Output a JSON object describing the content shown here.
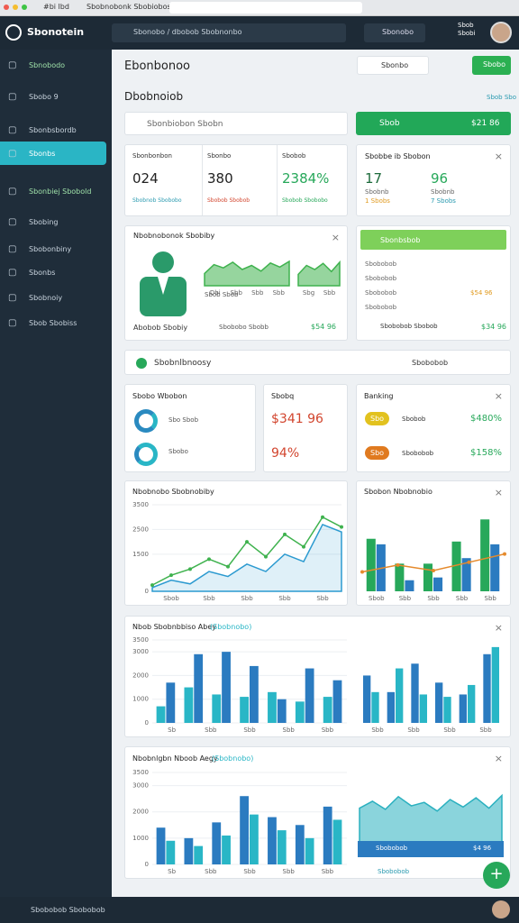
{
  "browser": {
    "tabs": [
      "#bi lbd",
      "Sbobnobonk Sbobiobosk"
    ]
  },
  "header": {
    "brand": "Sbonotein",
    "search": "Sbonobo / dbobob Sbobnonbo",
    "button": "Sbonobo",
    "user": "Sbob Sbobi"
  },
  "sidebar": {
    "active": 3,
    "items": [
      "Sbnobodo",
      "Sbobo 9",
      "Sbonbsbordb",
      "Sbonbs",
      "Sbonbiej Sbobold",
      "Sbobing",
      "Sbobonbiny",
      "Sbonbs",
      "Sbobnoiy",
      "Sbob Sbobiss"
    ]
  },
  "main": {
    "title": "Ebonbonoo",
    "select": "Sbonbo",
    "action": "Sbobo",
    "section": "Dbobnoiob",
    "section_link": "Sbob Sbo",
    "search": "Sbonbiobon Sbobn",
    "green_bar": {
      "label": "Sbob",
      "value": "$21 86"
    }
  },
  "stats": [
    {
      "label": "Sbonbonbon",
      "value": "024",
      "note": "Sbobnob Sbobobo"
    },
    {
      "label": "Sbonbo",
      "value": "380",
      "note": "Sbobob Sbobob"
    },
    {
      "label": "Sbobob",
      "value": "2384%",
      "note": "Sbobob Sbobobo"
    }
  ],
  "mini": {
    "title": "Sbobbe ib Sbobon",
    "items": [
      {
        "value": "17",
        "note": "Sbobnb",
        "sub": "1 Sbobs"
      },
      {
        "value": "96",
        "note": "Sbobnb",
        "sub": "7 Sbobs"
      }
    ]
  },
  "profile": {
    "title": "Nbobnobonok Sbobiby",
    "name": "Abobob Sbobiy",
    "caption": "Sbob Sbob",
    "note": "Sbobobo Sbobb",
    "value": "$54 96",
    "chart1": {
      "type": "area",
      "ylim": [
        0,
        80
      ],
      "xlabels": [
        "Dbi",
        "Sbb",
        "Sbb",
        "Sbb"
      ],
      "series": [
        {
          "color": "#3fb24e",
          "values": [
            30,
            52,
            44,
            58,
            40,
            50,
            36,
            56,
            46,
            60
          ]
        }
      ]
    },
    "chart2": {
      "type": "area",
      "ylim": [
        0,
        80
      ],
      "xlabels": [
        "Sbg",
        "Sbb"
      ],
      "series": [
        {
          "color": "#3fb24e",
          "values": [
            28,
            50,
            40,
            55,
            35,
            58
          ]
        }
      ]
    }
  },
  "side_card": {
    "header": "Sbonbsbob",
    "rows": [
      "Sbobobob",
      "Sbobobob",
      "Sbobobob",
      "Sbobobob"
    ],
    "row_value": "$54 96",
    "footer": "Sbobobob Sbobob",
    "footer_value": "$34 96"
  },
  "section_bar": {
    "title": "Sbobnlbnoosy",
    "button": "Sbobobob"
  },
  "donut_card": {
    "title": "Sbobo Wbobon",
    "rows": [
      {
        "label": "Sbo Sbob"
      },
      {
        "label": "Sbobo"
      }
    ]
  },
  "amount_card": {
    "title": "Sbobq",
    "value": "$341 96",
    "percent": "94%"
  },
  "banking": {
    "title": "Banking",
    "rows": [
      {
        "badge": "Sbo",
        "label": "Sbobob",
        "value": "$480%"
      },
      {
        "badge": "Sbo",
        "label": "Sbobobob",
        "value": "$158%"
      }
    ]
  },
  "line_card": {
    "title": "Nbobnobo Sbobnobiby",
    "chart": {
      "type": "line",
      "ylim": [
        0,
        3500
      ],
      "yticks": [
        0,
        1500,
        2500,
        3500
      ],
      "xlabels": [
        "Sbob",
        "Sbb",
        "Sbb",
        "Sbb",
        "Sbb"
      ],
      "series": [
        {
          "color": "#2b9ad0",
          "type": "area",
          "values": [
            150,
            450,
            300,
            800,
            600,
            1100,
            800,
            1500,
            1200,
            2700,
            2400
          ]
        },
        {
          "color": "#3fb24e",
          "values": [
            250,
            650,
            900,
            1300,
            1000,
            2000,
            1400,
            2300,
            1800,
            3000,
            2600
          ]
        }
      ]
    }
  },
  "bar_card": {
    "title": "Sbobon Nbobnobio",
    "chart": {
      "type": "bar",
      "ylim": [
        0,
        3000
      ],
      "xlabels": [
        "Sbob",
        "Sbb",
        "Sbb",
        "Sbb",
        "Sbb"
      ],
      "series": [
        {
          "color": "#27a85a",
          "values": [
            1900,
            1000,
            1000,
            1800,
            2600
          ]
        },
        {
          "color": "#2b7bc0",
          "values": [
            1700,
            400,
            500,
            1200,
            1700
          ]
        },
        {
          "color": "#e58a2c",
          "type": "line",
          "values": [
            700,
            950,
            750,
            1050,
            1350
          ]
        }
      ]
    }
  },
  "wide_card": {
    "title": "Nbob Sbobnbbiso Abey",
    "tag": "(Sbobnobo)",
    "left": {
      "type": "bar",
      "ylim": [
        0,
        3500
      ],
      "yticks": [
        0,
        1000,
        2000,
        3000,
        3500
      ],
      "xlabels": [
        "Sb",
        "Sbb",
        "Sbb",
        "Sbb",
        "Sbb"
      ],
      "series": [
        {
          "color": "#29b6c6",
          "values": [
            700,
            1500,
            1200,
            1100,
            1300,
            900,
            1100
          ]
        },
        {
          "color": "#2b7bc0",
          "values": [
            1700,
            2900,
            3000,
            2400,
            1000,
            2300,
            1800
          ]
        }
      ]
    },
    "right": {
      "type": "bar",
      "ylim": [
        0,
        3500
      ],
      "xlabels": [
        "Sbb",
        "Sbb",
        "Sbb",
        "Sbb"
      ],
      "series": [
        {
          "color": "#2b7bc0",
          "values": [
            2000,
            1300,
            2500,
            1700,
            1200,
            2900
          ]
        },
        {
          "color": "#29b6c6",
          "values": [
            1300,
            2300,
            1200,
            1100,
            1600,
            3200
          ]
        }
      ]
    }
  },
  "bottom_card": {
    "title": "Nbobnlgbn Nboob Aegy",
    "tag": "(Sbobnobo)",
    "bars": {
      "type": "bar",
      "ylim": [
        0,
        3500
      ],
      "yticks": [
        0,
        1000,
        2000,
        3000,
        3500
      ],
      "xlabels": [
        "Sb",
        "Sbb",
        "Sbb",
        "Sbb",
        "Sbb"
      ],
      "series": [
        {
          "color": "#2b7bc0",
          "values": [
            1400,
            1000,
            1600,
            2600,
            1800,
            1500,
            2200
          ]
        },
        {
          "color": "#29b6c6",
          "values": [
            900,
            700,
            1100,
            1900,
            1300,
            1000,
            1700
          ]
        }
      ]
    },
    "area": {
      "type": "area",
      "ylim": [
        0,
        100
      ],
      "series": [
        {
          "color": "#2ab0bf",
          "values": [
            60,
            72,
            58,
            80,
            64,
            70,
            55,
            75,
            62,
            78,
            60,
            82
          ]
        }
      ]
    },
    "area_label": "Sbobobob",
    "area_value": "$4 96",
    "footer": "Sbobobob"
  },
  "footer": {
    "status": "Sbobobob Sbobobob"
  }
}
